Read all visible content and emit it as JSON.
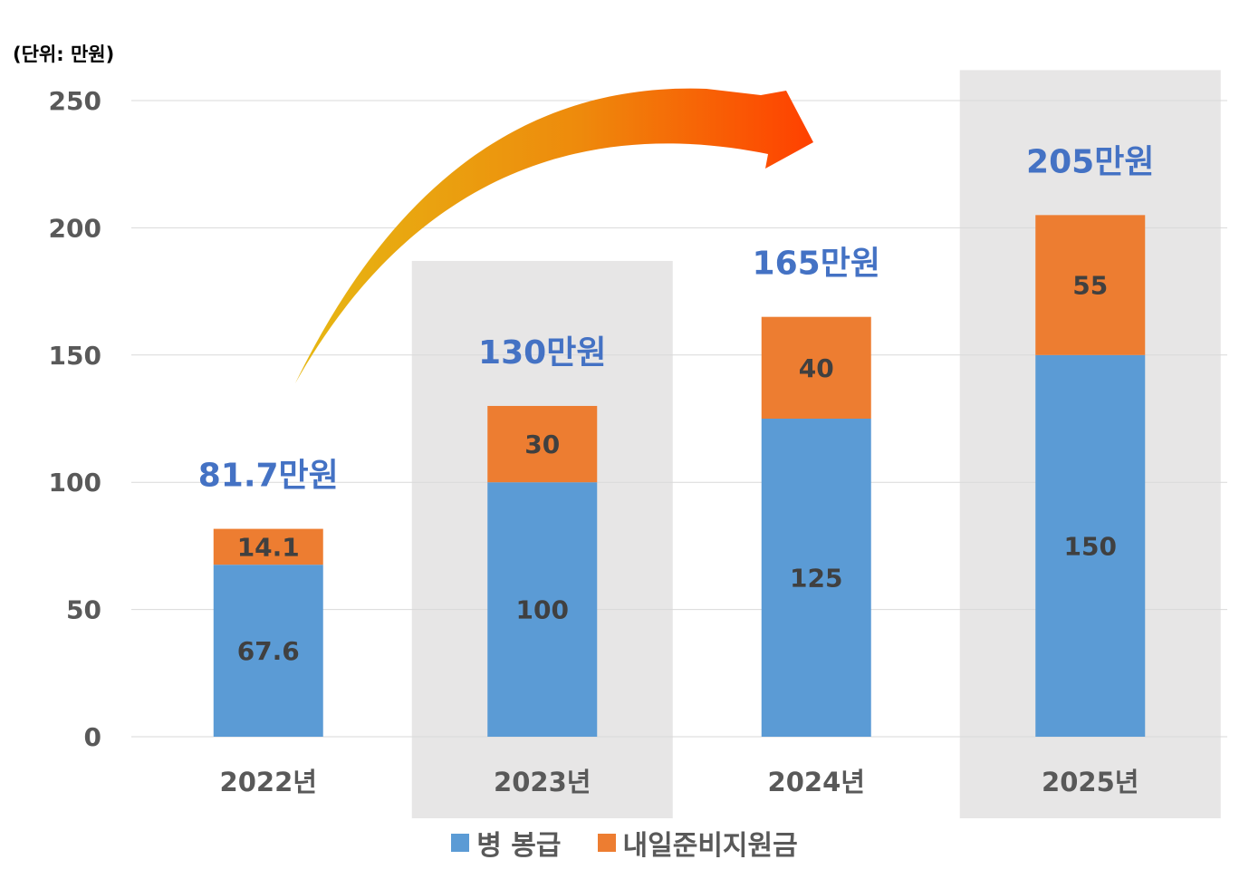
{
  "unit_label": "(단위: 만원)",
  "chart_data": {
    "type": "bar",
    "stacked": true,
    "categories": [
      "2022년",
      "2023년",
      "2024년",
      "2025년"
    ],
    "series": [
      {
        "name": "병 봉급",
        "values": [
          67.6,
          100,
          125,
          150
        ],
        "value_labels": [
          "67.6",
          "100",
          "125",
          "150"
        ],
        "color": "#5B9BD5"
      },
      {
        "name": "내일준비지원금",
        "values": [
          14.1,
          30,
          40,
          55
        ],
        "value_labels": [
          "14.1",
          "30",
          "40",
          "55"
        ],
        "color": "#ED7D31"
      }
    ],
    "totals": [
      "81.7만원",
      "130만원",
      "165만원",
      "205만원"
    ],
    "highlighted_categories": [
      "2023년",
      "2025년"
    ],
    "ylim": [
      0,
      250
    ],
    "yticks": [
      "0",
      "50",
      "100",
      "150",
      "200",
      "250"
    ],
    "grid": true,
    "legend_position": "bottom",
    "annotation": "orange arrow curving from 2022년 toward 2024년",
    "colors": {
      "total_label": "#4472C4",
      "axis_text": "#595959",
      "highlight_band": "#E7E6E6",
      "grid": "#D9D9D9"
    }
  }
}
